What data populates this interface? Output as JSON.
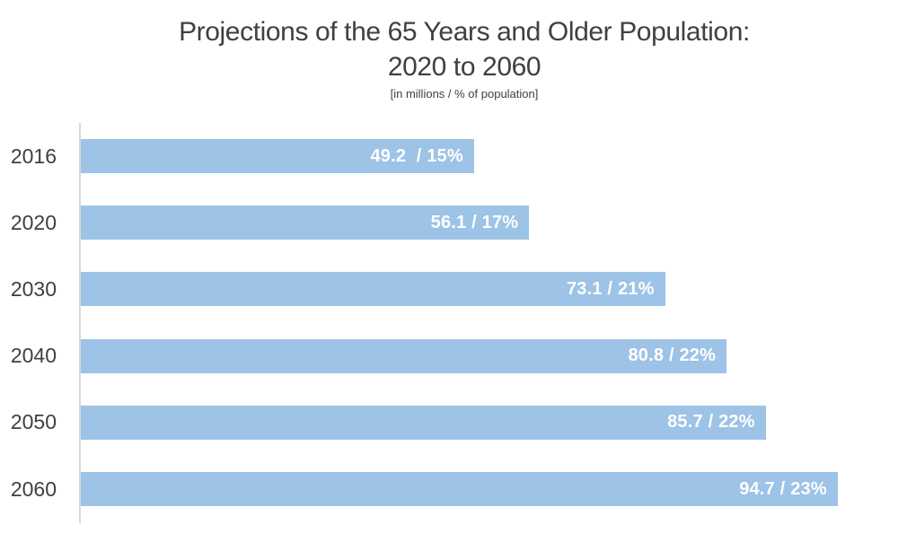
{
  "header": {
    "title_line1": "Projections of the 65 Years and Older Population:",
    "title_line2": "2020 to 2060",
    "subtitle": "[in millions / % of population]"
  },
  "chart_data": {
    "type": "bar",
    "orientation": "horizontal",
    "title": "Projections of the 65 Years and Older Population: 2020 to 2060",
    "subtitle": "[in millions / % of population]",
    "categories": [
      "2016",
      "2020",
      "2030",
      "2040",
      "2050",
      "2060"
    ],
    "series": [
      {
        "name": "population_millions",
        "values": [
          49.2,
          56.1,
          73.1,
          80.8,
          85.7,
          94.7
        ]
      },
      {
        "name": "percent_of_population",
        "values": [
          15,
          17,
          21,
          22,
          22,
          23
        ]
      }
    ],
    "bar_labels": [
      "49.2  / 15%",
      "56.1 / 17%",
      "73.1 / 21%",
      "80.8 / 22%",
      "85.7 / 22%",
      "94.7 / 23%"
    ],
    "xlim": [
      0,
      100
    ],
    "grid": false,
    "legend": false
  },
  "colors": {
    "bar_fill": "#9DC3E6",
    "bar_label_text": "#FFFFFF",
    "axis_line": "#D9D9D9",
    "text": "#404040",
    "background": "#FFFFFF"
  }
}
